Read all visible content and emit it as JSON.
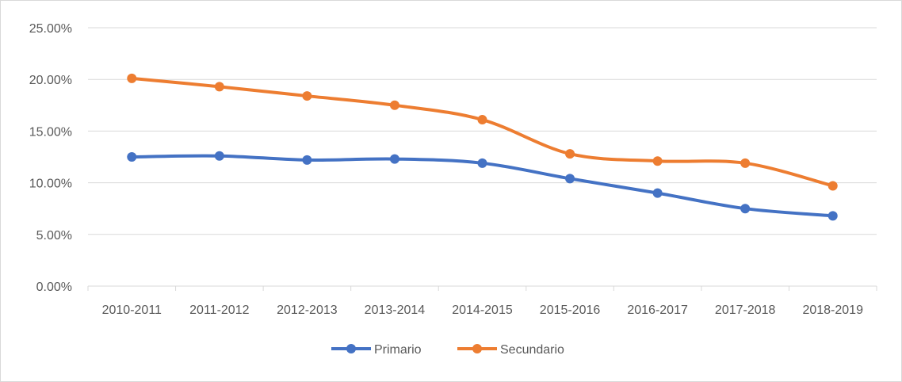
{
  "chart_data": {
    "type": "line",
    "title": "",
    "xlabel": "",
    "ylabel": "",
    "categories": [
      "2010-2011",
      "2011-2012",
      "2012-2013",
      "2013-2014",
      "2014-2015",
      "2015-2016",
      "2016-2017",
      "2017-2018",
      "2018-2019"
    ],
    "y_ticks": [
      "0.00%",
      "5.00%",
      "10.00%",
      "15.00%",
      "20.00%",
      "25.00%"
    ],
    "ylim": [
      0,
      25
    ],
    "grid": true,
    "legend_position": "bottom",
    "series": [
      {
        "name": "Primario",
        "color": "#4472c4",
        "values": [
          12.5,
          12.6,
          12.2,
          12.3,
          11.9,
          10.4,
          9.0,
          7.5,
          6.8
        ]
      },
      {
        "name": "Secundario",
        "color": "#ed7d31",
        "values": [
          20.1,
          19.3,
          18.4,
          17.5,
          16.1,
          12.8,
          12.1,
          11.9,
          9.7
        ]
      }
    ]
  }
}
